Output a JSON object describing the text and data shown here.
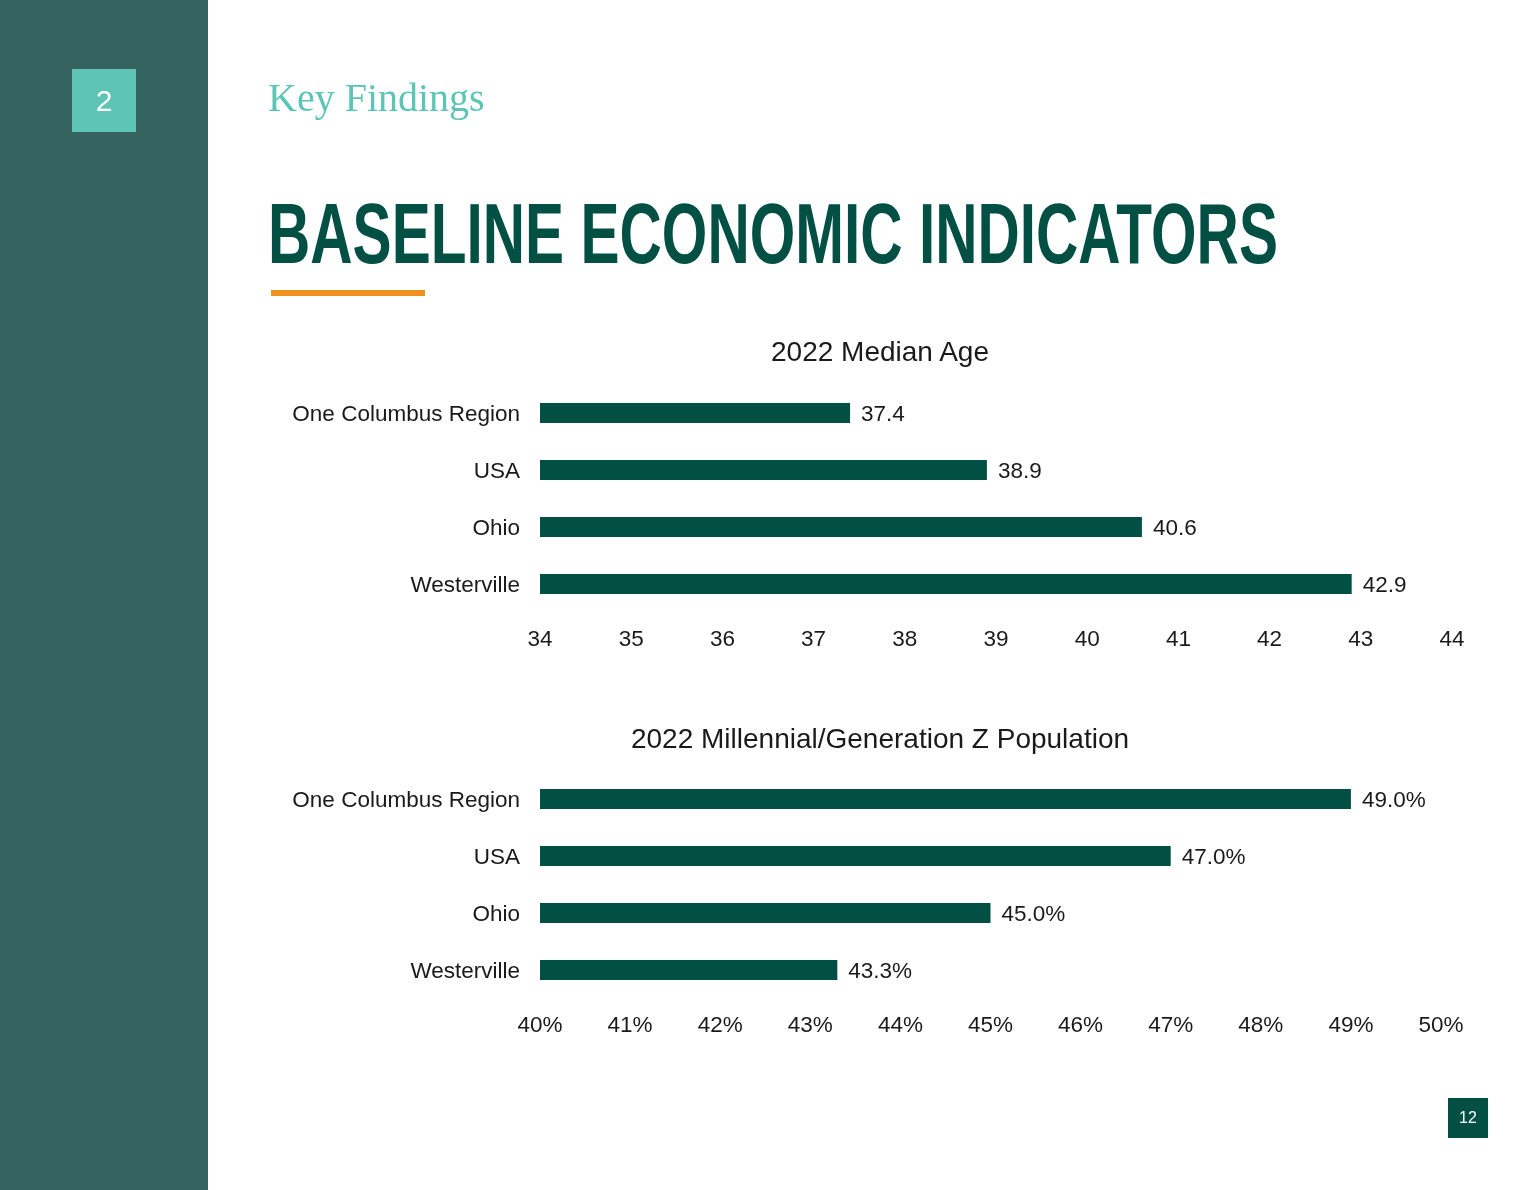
{
  "chart_data": [
    {
      "type": "other",
      "title": "BASELINE ECONOMIC INDICATORS",
      "subtitle": "Key Findings",
      "annotations": [
        "2",
        "12"
      ]
    },
    {
      "type": "bar",
      "orientation": "horizontal",
      "title": "2022 Median Age",
      "categories": [
        "One Columbus Region",
        "USA",
        "Ohio",
        "Westerville"
      ],
      "values": [
        37.4,
        38.9,
        40.6,
        42.9
      ],
      "color": "#024f44",
      "xlim": [
        34,
        44
      ],
      "xticks": [
        34,
        35,
        36,
        37,
        38,
        39,
        40,
        41,
        42,
        43,
        44
      ],
      "data_labels": true
    },
    {
      "type": "bar",
      "orientation": "horizontal",
      "title": "2022 Millennial/Generation Z Population",
      "categories": [
        "One Columbus Region",
        "USA",
        "Ohio",
        "Westerville"
      ],
      "values": [
        49.0,
        47.0,
        45.0,
        43.3
      ],
      "color": "#024f44",
      "xlim": [
        40,
        50
      ],
      "xticks": [
        {
          "value": 40,
          "label": "40%"
        },
        {
          "value": 41,
          "label": "41%"
        },
        {
          "value": 42,
          "label": "42%"
        },
        {
          "value": 43,
          "label": "43%"
        },
        {
          "value": 44,
          "label": "44%"
        },
        {
          "value": 45,
          "label": "45%"
        },
        {
          "value": 46,
          "label": "46%"
        },
        {
          "value": 47,
          "label": "47%"
        },
        {
          "value": 48,
          "label": "48%"
        },
        {
          "value": 49,
          "label": "49%"
        },
        {
          "value": 50,
          "label": "50%"
        }
      ],
      "value_labels": [
        "49.0%",
        "47.0%",
        "45.0%",
        "43.3%"
      ]
    }
  ]
}
